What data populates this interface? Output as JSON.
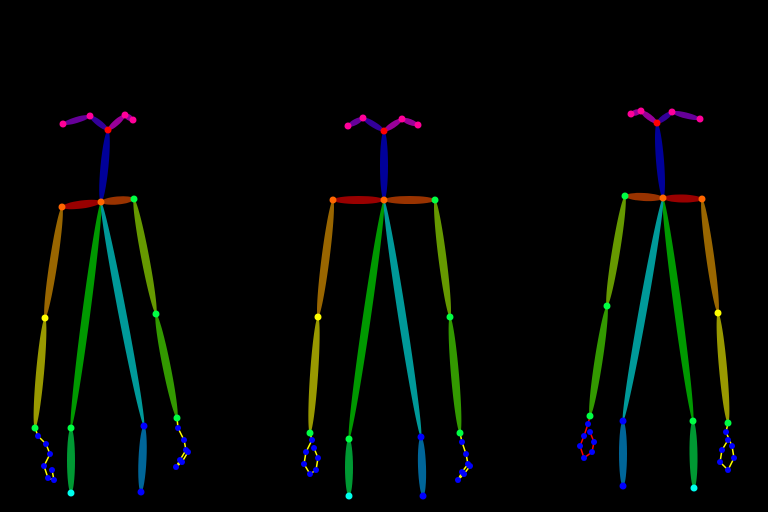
{
  "background_color": "#000000",
  "figure_count": 3,
  "palette": {
    "joint_red": "#ff0000",
    "joint_orange": "#ff6600",
    "joint_yellow": "#ffff00",
    "joint_green": "#00ff44",
    "joint_cyan": "#00ffee",
    "joint_blue": "#0000ff",
    "joint_magenta": "#ff0099",
    "limb_neck": "#000099",
    "limb_shoulder_right": "#990000",
    "limb_shoulder_left": "#993300",
    "limb_arm_upper_right": "#996600",
    "limb_arm_lower_right": "#999900",
    "limb_arm_upper_left": "#669900",
    "limb_arm_lower_left": "#339900",
    "limb_torso_right": "#009900",
    "limb_torso_left": "#009999",
    "limb_hip_right": "#009933",
    "limb_hip_left": "#006699",
    "limb_face_right": "#330099",
    "limb_face_left": "#660099",
    "limb_face_ear": "#990099",
    "hand_line": "#ffff00",
    "hand_line_alt": "#ff0000"
  }
}
